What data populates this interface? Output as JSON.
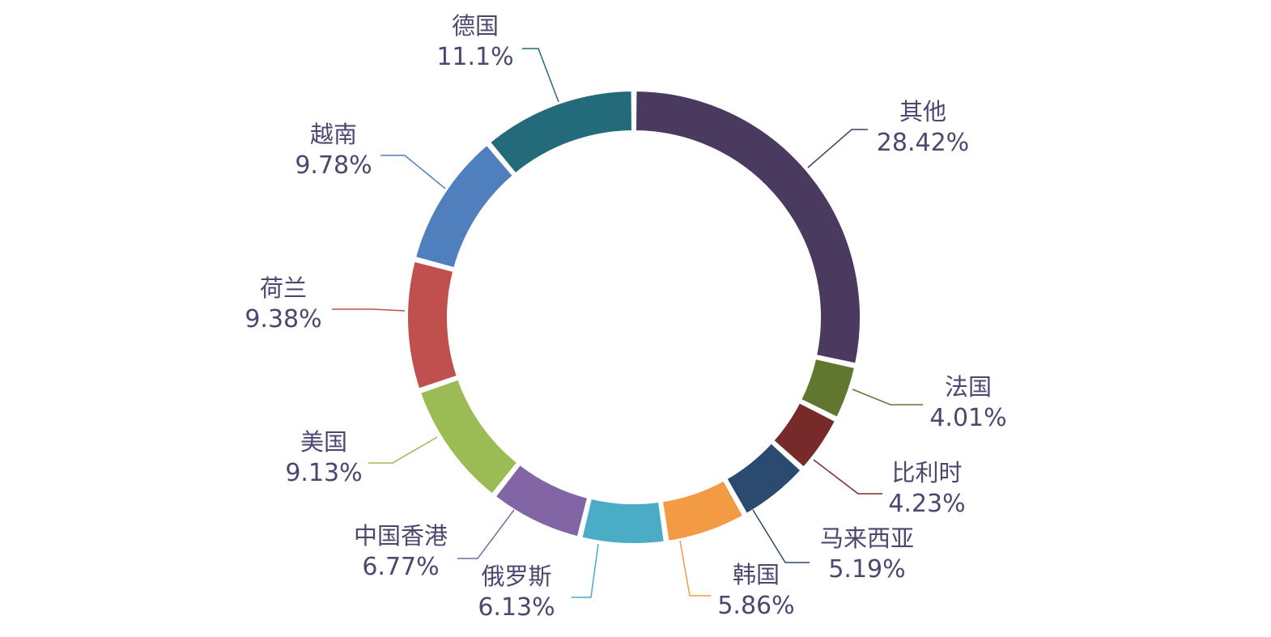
{
  "chart_data": {
    "type": "pie",
    "subtype": "donut",
    "title": "",
    "legend": "none",
    "slices": [
      {
        "label": "其他",
        "value": 28.42,
        "value_label": "28.42%",
        "color": "#4b3a60"
      },
      {
        "label": "法国",
        "value": 4.01,
        "value_label": "4.01%",
        "color": "#617730"
      },
      {
        "label": "比利时",
        "value": 4.23,
        "value_label": "4.23%",
        "color": "#782a2a"
      },
      {
        "label": "马来西亚",
        "value": 5.19,
        "value_label": "5.19%",
        "color": "#2a4a6f"
      },
      {
        "label": "韩国",
        "value": 5.86,
        "value_label": "5.86%",
        "color": "#f39a44"
      },
      {
        "label": "俄罗斯",
        "value": 6.13,
        "value_label": "6.13%",
        "color": "#4aacc5"
      },
      {
        "label": "中国香港",
        "value": 6.77,
        "value_label": "6.77%",
        "color": "#8165a5"
      },
      {
        "label": "美国",
        "value": 9.13,
        "value_label": "9.13%",
        "color": "#9bbb55"
      },
      {
        "label": "荷兰",
        "value": 9.38,
        "value_label": "9.38%",
        "color": "#c0504d"
      },
      {
        "label": "越南",
        "value": 9.78,
        "value_label": "9.78%",
        "color": "#4f80bd"
      },
      {
        "label": "德国",
        "value": 11.1,
        "value_label": "11.1%",
        "color": "#236b7b"
      }
    ]
  }
}
